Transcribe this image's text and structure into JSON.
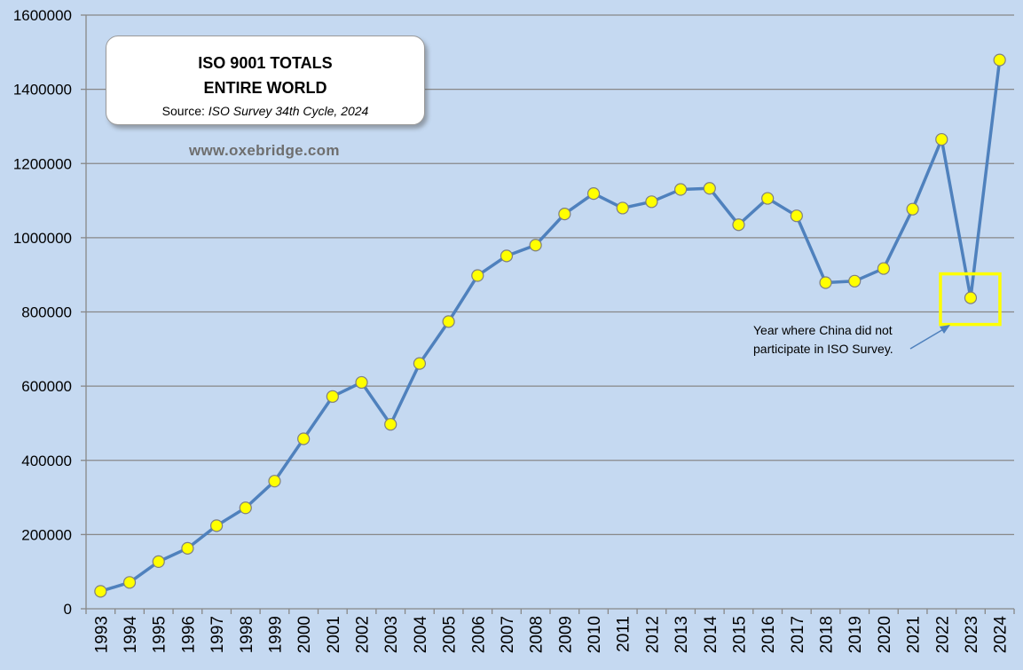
{
  "chart_data": {
    "type": "line",
    "x": [
      "1993",
      "1994",
      "1995",
      "1996",
      "1997",
      "1998",
      "1999",
      "2000",
      "2001",
      "2002",
      "2003",
      "2004",
      "2005",
      "2006",
      "2007",
      "2008",
      "2009",
      "2010",
      "2011",
      "2012",
      "2013",
      "2014",
      "2015",
      "2016",
      "2017",
      "2018",
      "2019",
      "2020",
      "2021",
      "2022",
      "2023",
      "2024"
    ],
    "series": [
      {
        "values": [
          47000,
          71000,
          127000,
          163000,
          224000,
          272000,
          344000,
          458000,
          572000,
          610000,
          497000,
          661000,
          774000,
          898000,
          951000,
          980000,
          1064000,
          1119000,
          1080000,
          1097000,
          1130000,
          1133000,
          1035000,
          1106000,
          1059000,
          879000,
          883000,
          917000,
          1077000,
          1265000,
          838000,
          1479000
        ]
      }
    ],
    "ylim": [
      0,
      1600000
    ],
    "y_ticks": [
      "0",
      "200000",
      "400000",
      "600000",
      "800000",
      "1000000",
      "1200000",
      "1400000",
      "1600000"
    ],
    "grid": true,
    "colors": {
      "line": "#4f81bd",
      "marker_fill": "#ffff00",
      "marker_stroke": "#7f7f7f",
      "highlight_box": "#ffff00",
      "grid": "#888888"
    }
  },
  "title_box": {
    "line1": "ISO 9001 TOTALS",
    "line2": "ENTIRE WORLD",
    "source_prefix": "Source: ",
    "source_italic": "ISO Survey 34th Cycle, 2024"
  },
  "website": "www.oxebridge.com",
  "annotation": {
    "text": "Year where China did not participate in ISO Survey.",
    "highlight_year": "2023"
  }
}
